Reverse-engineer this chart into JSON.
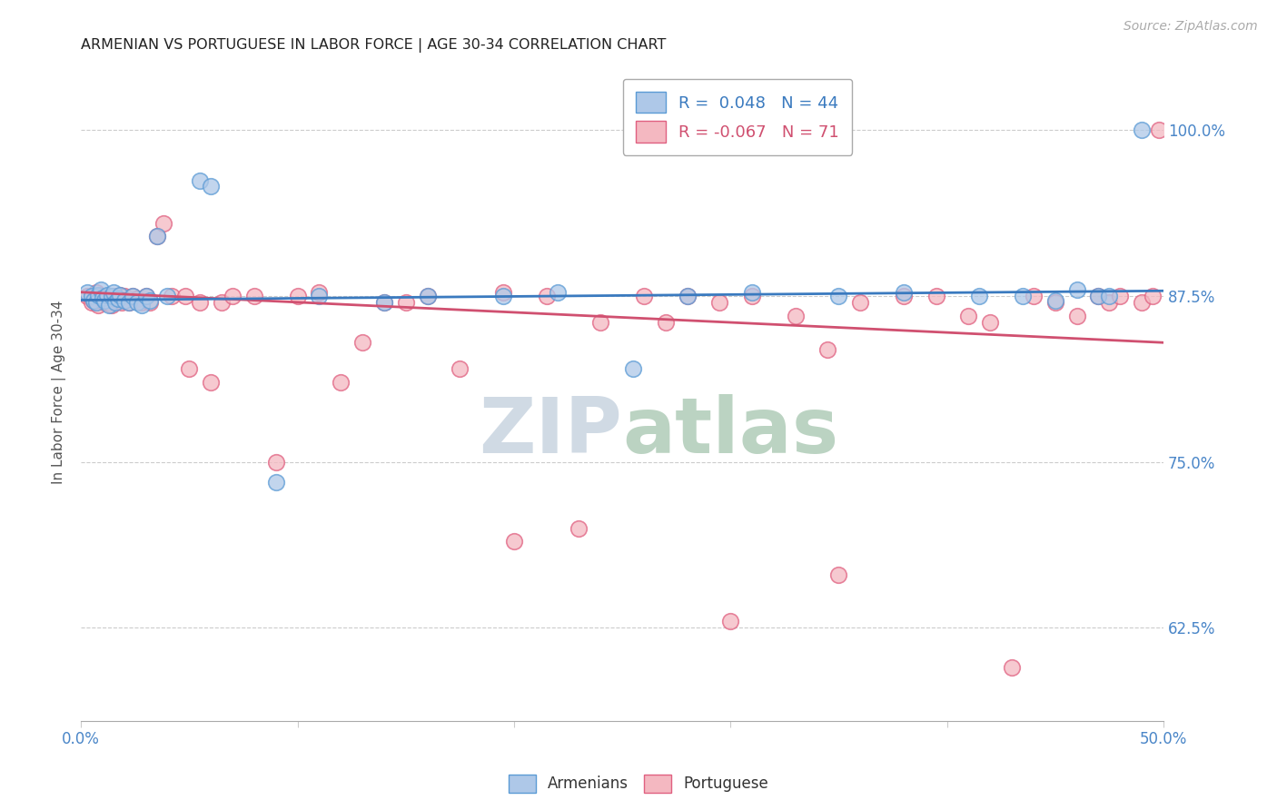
{
  "title": "ARMENIAN VS PORTUGUESE IN LABOR FORCE | AGE 30-34 CORRELATION CHART",
  "source": "Source: ZipAtlas.com",
  "ylabel": "In Labor Force | Age 30-34",
  "ytick_labels": [
    "62.5%",
    "75.0%",
    "87.5%",
    "100.0%"
  ],
  "ytick_values": [
    0.625,
    0.75,
    0.875,
    1.0
  ],
  "xmin": 0.0,
  "xmax": 0.5,
  "ymin": 0.555,
  "ymax": 1.05,
  "R_armenian": 0.048,
  "N_armenian": 44,
  "R_portuguese": -0.067,
  "N_portuguese": 71,
  "armenian_color": "#aec8e8",
  "armenian_edge": "#5b9bd5",
  "portuguese_color": "#f4b8c1",
  "portuguese_edge": "#e06080",
  "line_armenian": "#3a7abf",
  "line_portuguese": "#d05070",
  "watermark_color": "#d0dce8",
  "watermark_color2": "#c8d8c8",
  "background_color": "#ffffff",
  "arm_trend_x0": 0.0,
  "arm_trend_y0": 0.872,
  "arm_trend_x1": 0.5,
  "arm_trend_y1": 0.879,
  "por_trend_x0": 0.0,
  "por_trend_y0": 0.878,
  "por_trend_x1": 0.5,
  "por_trend_y1": 0.84,
  "armenian_x": [
    0.003,
    0.005,
    0.006,
    0.007,
    0.008,
    0.009,
    0.01,
    0.011,
    0.012,
    0.013,
    0.014,
    0.015,
    0.016,
    0.017,
    0.018,
    0.02,
    0.022,
    0.024,
    0.026,
    0.028,
    0.03,
    0.032,
    0.035,
    0.04,
    0.055,
    0.06,
    0.09,
    0.11,
    0.14,
    0.16,
    0.195,
    0.22,
    0.255,
    0.28,
    0.31,
    0.35,
    0.38,
    0.415,
    0.435,
    0.45,
    0.46,
    0.47,
    0.475,
    0.49
  ],
  "armenian_y": [
    0.878,
    0.875,
    0.872,
    0.87,
    0.876,
    0.88,
    0.874,
    0.872,
    0.876,
    0.868,
    0.875,
    0.878,
    0.87,
    0.873,
    0.876,
    0.872,
    0.87,
    0.875,
    0.87,
    0.868,
    0.875,
    0.872,
    0.92,
    0.875,
    0.962,
    0.958,
    0.735,
    0.875,
    0.87,
    0.875,
    0.875,
    0.878,
    0.82,
    0.875,
    0.878,
    0.875,
    0.878,
    0.875,
    0.875,
    0.872,
    0.88,
    0.875,
    0.875,
    1.0
  ],
  "portuguese_x": [
    0.003,
    0.005,
    0.006,
    0.007,
    0.008,
    0.009,
    0.01,
    0.011,
    0.012,
    0.013,
    0.014,
    0.015,
    0.016,
    0.017,
    0.018,
    0.019,
    0.02,
    0.022,
    0.024,
    0.026,
    0.028,
    0.03,
    0.032,
    0.035,
    0.038,
    0.042,
    0.048,
    0.055,
    0.065,
    0.08,
    0.1,
    0.11,
    0.13,
    0.15,
    0.16,
    0.175,
    0.195,
    0.215,
    0.24,
    0.26,
    0.27,
    0.28,
    0.295,
    0.31,
    0.33,
    0.345,
    0.36,
    0.38,
    0.395,
    0.41,
    0.42,
    0.44,
    0.45,
    0.46,
    0.47,
    0.475,
    0.48,
    0.49,
    0.495,
    0.498,
    0.05,
    0.06,
    0.07,
    0.09,
    0.12,
    0.14,
    0.2,
    0.23,
    0.3,
    0.35,
    0.43
  ],
  "portuguese_y": [
    0.875,
    0.87,
    0.872,
    0.878,
    0.868,
    0.875,
    0.872,
    0.87,
    0.875,
    0.87,
    0.868,
    0.875,
    0.873,
    0.872,
    0.876,
    0.87,
    0.875,
    0.87,
    0.875,
    0.873,
    0.87,
    0.875,
    0.87,
    0.92,
    0.93,
    0.875,
    0.875,
    0.87,
    0.87,
    0.875,
    0.875,
    0.878,
    0.84,
    0.87,
    0.875,
    0.82,
    0.878,
    0.875,
    0.855,
    0.875,
    0.855,
    0.875,
    0.87,
    0.875,
    0.86,
    0.835,
    0.87,
    0.875,
    0.875,
    0.86,
    0.855,
    0.875,
    0.87,
    0.86,
    0.875,
    0.87,
    0.875,
    0.87,
    0.875,
    1.0,
    0.82,
    0.81,
    0.875,
    0.75,
    0.81,
    0.87,
    0.69,
    0.7,
    0.63,
    0.665,
    0.595
  ]
}
